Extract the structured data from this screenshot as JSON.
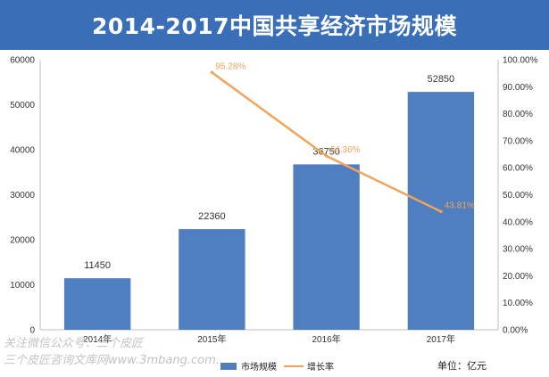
{
  "header": {
    "title": "2014-2017中国共享经济市场规模"
  },
  "unit_note": "单位：亿元",
  "watermark": {
    "line1": "关注微信公众号：三个皮匠",
    "line2": "三个皮匠咨询文库网www.3mbang.com."
  },
  "colors": {
    "bar": "#4f7fc0",
    "line": "#f0a35a",
    "title_bg": "#3a6fb8"
  },
  "chart_data": {
    "type": "bar",
    "categories": [
      "2014年",
      "2015年",
      "2016年",
      "2017年"
    ],
    "series": [
      {
        "name": "市场规模",
        "type": "bar",
        "axis": "left",
        "values": [
          11450,
          22360,
          36750,
          52850
        ],
        "labels": [
          "11450",
          "22360",
          "36750",
          "52850"
        ]
      },
      {
        "name": "增长率",
        "type": "line",
        "axis": "right",
        "values": [
          null,
          95.28,
          64.36,
          43.81
        ],
        "labels": [
          "",
          "95.28%",
          "64.36%",
          "43.81%"
        ]
      }
    ],
    "y_left": {
      "min": 0,
      "max": 60000,
      "ticks": [
        "0",
        "10000",
        "20000",
        "30000",
        "40000",
        "50000",
        "60000"
      ]
    },
    "y_right": {
      "min": 0,
      "max": 100,
      "ticks": [
        "0.00%",
        "10.00%",
        "20.00%",
        "30.00%",
        "40.00%",
        "50.00%",
        "60.00%",
        "70.00%",
        "80.00%",
        "90.00%",
        "100.00%"
      ]
    },
    "grid": false,
    "legend_position": "bottom"
  }
}
